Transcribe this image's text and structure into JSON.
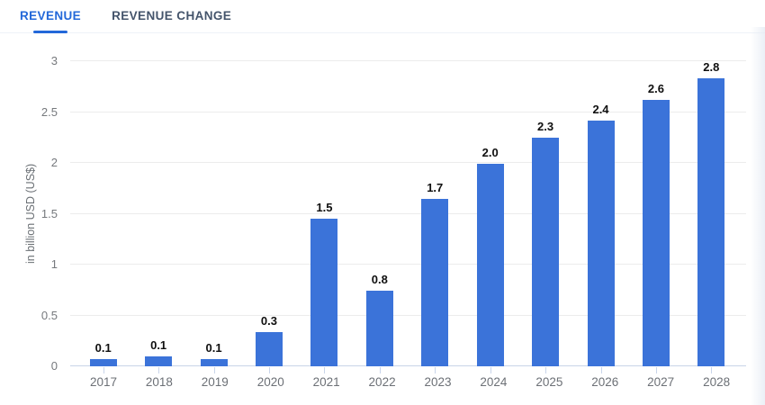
{
  "tabs": [
    {
      "label": "REVENUE",
      "active": true
    },
    {
      "label": "REVENUE CHANGE",
      "active": false
    }
  ],
  "colors": {
    "accent": "#2368d9",
    "inactive_tab_text": "#44546b",
    "value_label_text": "#0f0f0f",
    "axis_text": "#76797d"
  },
  "chart_data": {
    "type": "bar",
    "title": "",
    "xlabel": "",
    "ylabel": "in billion USD (US$)",
    "categories": [
      "2017",
      "2018",
      "2019",
      "2020",
      "2021",
      "2022",
      "2023",
      "2024",
      "2025",
      "2026",
      "2027",
      "2028"
    ],
    "values": [
      0.1,
      0.1,
      0.1,
      0.3,
      1.5,
      0.8,
      1.7,
      2.0,
      2.3,
      2.4,
      2.6,
      2.8
    ],
    "value_labels": [
      "0.1",
      "0.1",
      "0.1",
      "0.3",
      "1.5",
      "0.8",
      "1.7",
      "2.0",
      "2.3",
      "2.4",
      "2.6",
      "2.8"
    ],
    "plotted_values_est": [
      0.07,
      0.1,
      0.07,
      0.34,
      1.45,
      0.74,
      1.65,
      1.99,
      2.25,
      2.42,
      2.62,
      2.83
    ],
    "y_ticks": [
      "0",
      "0.5",
      "1",
      "1.5",
      "2",
      "2.5",
      "3"
    ],
    "ylim": [
      0,
      3
    ],
    "grid": true,
    "legend": false,
    "bar_color": "#3b73d9"
  }
}
